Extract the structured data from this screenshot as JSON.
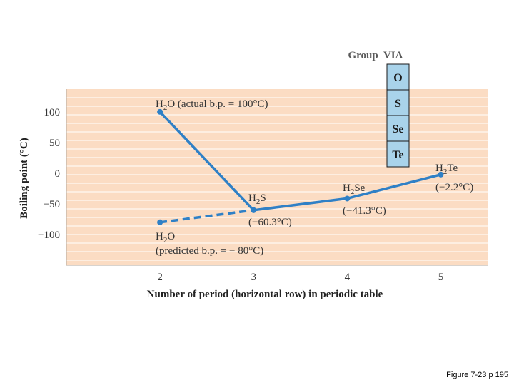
{
  "chart_data": {
    "type": "line",
    "xlabel": "Number of period (horizontal row) in periodic table",
    "ylabel": "Boiling point (°C)",
    "x_ticks": [
      "2",
      "3",
      "4",
      "5"
    ],
    "y_ticks": [
      "100",
      "50",
      "0",
      "−50",
      "−100"
    ],
    "y_tick_values": [
      100,
      50,
      0,
      -50,
      -100
    ],
    "xlim": [
      1.0,
      5.5
    ],
    "ylim": [
      -150,
      137
    ],
    "grid": "horizontal",
    "series": [
      {
        "name": "actual",
        "style": "solid",
        "color": "#2f80c6",
        "x": [
          2,
          3,
          4,
          5
        ],
        "values": [
          100,
          -60.3,
          -41.3,
          -2.2
        ]
      },
      {
        "name": "predicted",
        "style": "dashed",
        "color": "#2f80c6",
        "x": [
          2,
          3
        ],
        "values": [
          -80,
          -60.3
        ]
      }
    ],
    "labels": {
      "h2o_actual": {
        "pre": "H",
        "sub": "2",
        "post": "O (actual b.p. = 100°C)"
      },
      "h2s_name": {
        "pre": "H",
        "sub": "2",
        "post": "S"
      },
      "h2s_value": "(−60.3°C)",
      "h2se_name": {
        "pre": "H",
        "sub": "2",
        "post": "Se"
      },
      "h2se_value": "(−41.3°C)",
      "h2te_name": {
        "pre": "H",
        "sub": "2",
        "post": "Te"
      },
      "h2te_value": "(−2.2°C)",
      "h2o_pred_name": {
        "pre": "H",
        "sub": "2",
        "post": "O"
      },
      "h2o_pred_value": "(predicted b.p. = − 80°C)"
    },
    "group_box": {
      "title": "Group  VIA",
      "elements": [
        "O",
        "S",
        "Se",
        "Te"
      ]
    },
    "colors": {
      "plot_bg": "#fbdcc3",
      "line": "#2f80c6",
      "group_cell": "#a9d3ea",
      "grid": "#ffffff"
    }
  },
  "caption": "Figure 7-23 p 195"
}
